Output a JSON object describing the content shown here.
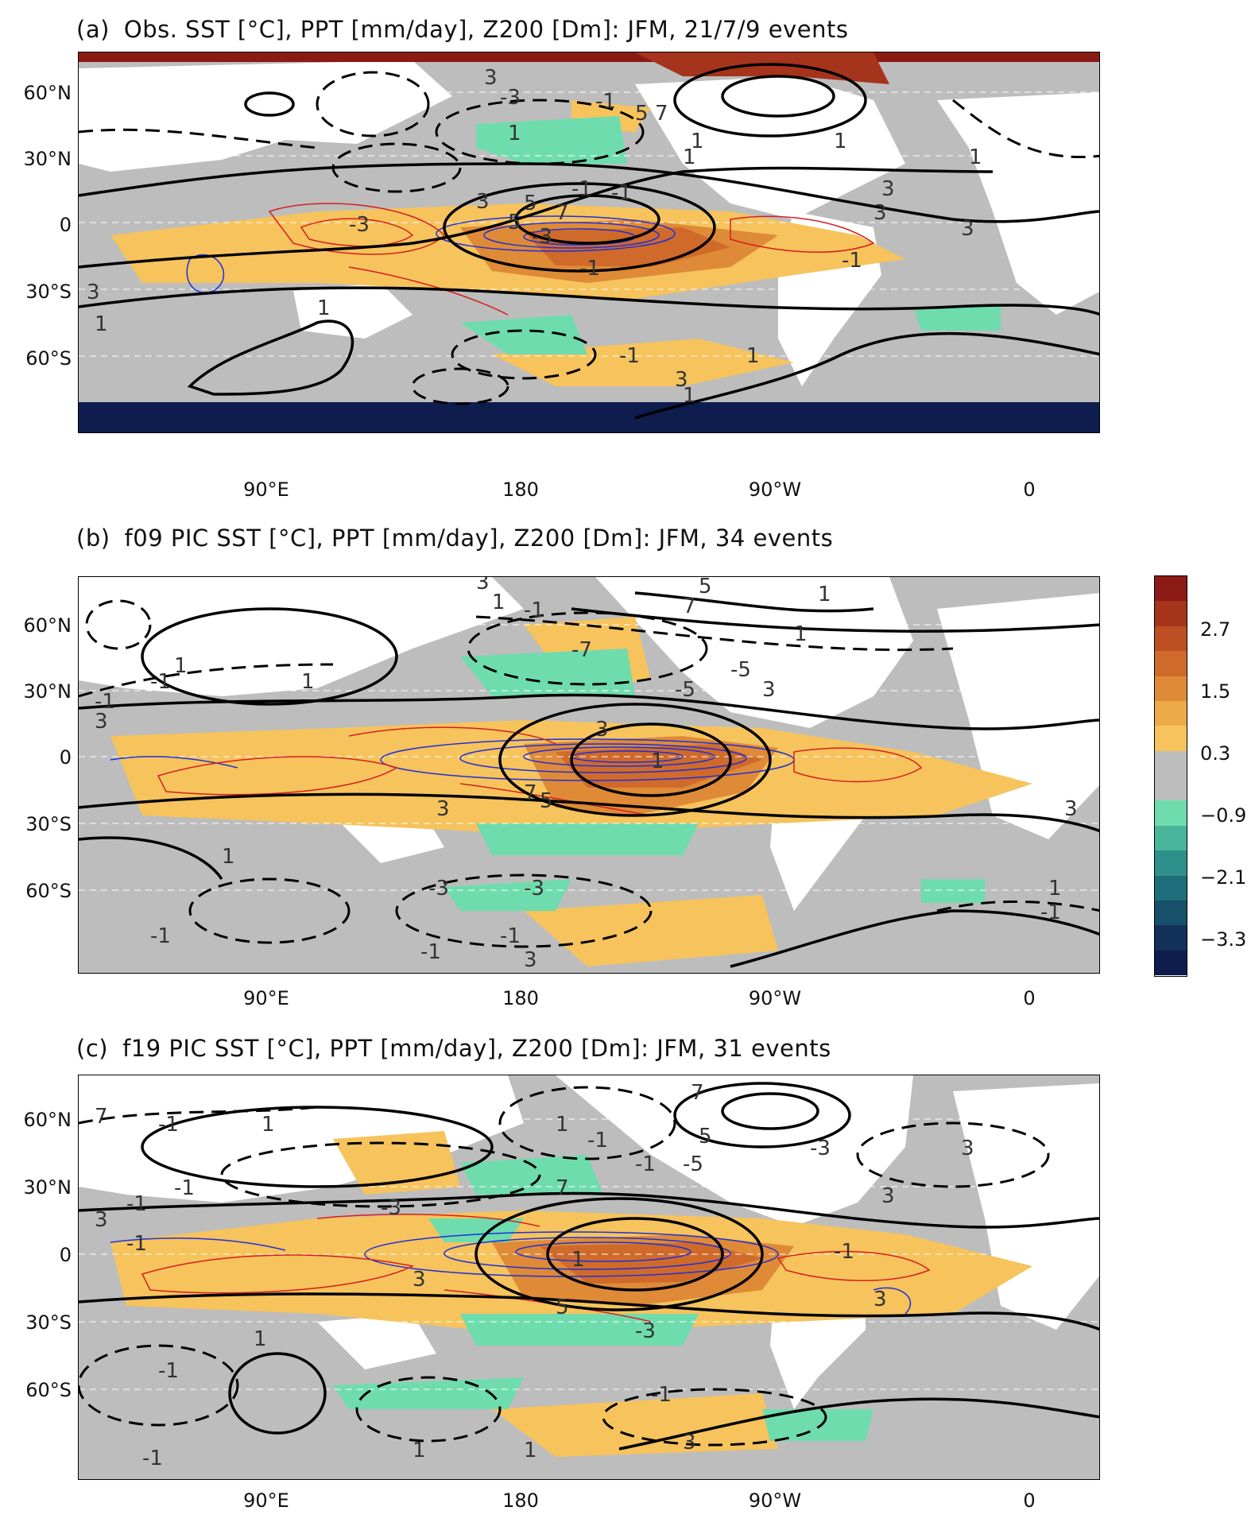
{
  "panels": [
    {
      "id": "a",
      "label": "(a)",
      "title": "Obs. SST [°C], PPT [mm/day], Z200 [Dm]: JFM, 21/7/9 events",
      "contour_labels": [
        "3",
        "5",
        "7",
        "1",
        "1",
        "3",
        "5",
        "7",
        "3",
        "1",
        "3",
        "1",
        "3",
        "1",
        "1",
        "1",
        "3",
        "1",
        "1",
        "3",
        "5",
        "-3",
        "-1",
        "-1",
        "-1",
        "-1",
        "-3",
        "-3",
        "-1",
        "-1"
      ]
    },
    {
      "id": "b",
      "label": "(b)",
      "title": "f09 PIC SST [°C], PPT [mm/day], Z200 [Dm]: JFM, 34 events",
      "contour_labels": [
        "3",
        "1",
        "-1",
        "1",
        "-1",
        "-1",
        "1",
        "3",
        "-7",
        "-5",
        "-5",
        "3",
        "7",
        "5",
        "1",
        "1",
        "1",
        "3",
        "3",
        "-3",
        "-3",
        "7",
        "5",
        "1",
        "3",
        "3",
        "-1",
        "-1",
        "1",
        "-1",
        "-1"
      ]
    },
    {
      "id": "c",
      "label": "(c)",
      "title": "f19 PIC SST [°C], PPT [mm/day], Z200 [Dm]: JFM, 31 events",
      "contour_labels": [
        "7",
        "-1",
        "1",
        "1",
        "-1",
        "-1",
        "-5",
        "5",
        "3",
        "3",
        "7",
        "7",
        "-3",
        "3",
        "-1",
        "-1",
        "-3",
        "-1",
        "3",
        "-3",
        "3",
        "1",
        "-1",
        "-1",
        "1",
        "-1",
        "1",
        "1",
        "3",
        "-1",
        "5"
      ]
    }
  ],
  "axes": {
    "lat_labels": [
      "60°N",
      "30°N",
      "0",
      "30°S",
      "60°S"
    ],
    "lon_labels": [
      "90°E",
      "180",
      "90°W",
      "0"
    ]
  },
  "colorbar": {
    "labels": [
      "2.7",
      "1.5",
      "0.3",
      "−0.9",
      "−2.1",
      "−3.3"
    ],
    "colors": [
      "#8b1a14",
      "#a6331c",
      "#bd4f22",
      "#cf6a2a",
      "#df8a37",
      "#ecab48",
      "#f6c35c",
      "#bdbdbd",
      "#bdbdbd",
      "#6fdcae",
      "#49b59b",
      "#2f8f8a",
      "#1e6d7a",
      "#184f6a",
      "#12305a",
      "#0f1d4e"
    ]
  },
  "colors": {
    "positive_shading": "#f6c35c",
    "strong_positive": "#cf6a2a",
    "negative_shading": "#6fdcae",
    "neutral_shading": "#bdbdbd",
    "ppt_positive": "#1f2fd6",
    "ppt_negative": "#d61f1f",
    "z200_contour": "#000000"
  }
}
